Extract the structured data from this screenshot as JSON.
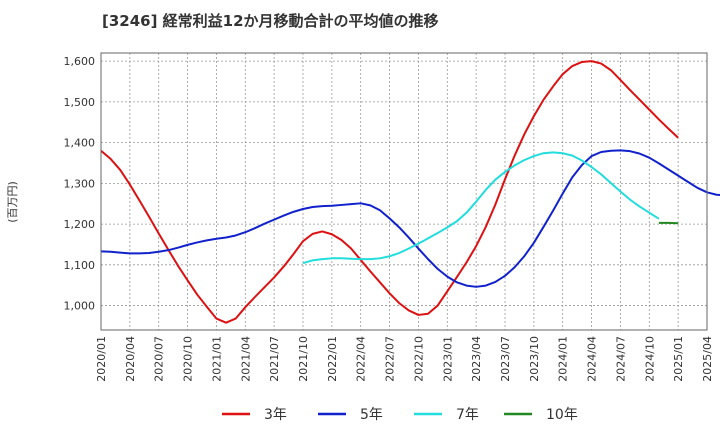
{
  "chart_data": {
    "type": "line",
    "title": "[3246]  経常利益12か月移動合計の平均値の推移",
    "ylabel": "(百万円)",
    "xlabel": "",
    "ylim": [
      940,
      1620
    ],
    "yticks": [
      1000,
      1100,
      1200,
      1300,
      1400,
      1500,
      1600
    ],
    "ytick_labels": [
      "1,000",
      "1,100",
      "1,200",
      "1,300",
      "1,400",
      "1,500",
      "1,600"
    ],
    "xticks": [
      "2020/01",
      "2020/04",
      "2020/07",
      "2020/10",
      "2021/01",
      "2021/04",
      "2021/07",
      "2021/10",
      "2022/01",
      "2022/04",
      "2022/07",
      "2022/10",
      "2023/01",
      "2023/04",
      "2023/07",
      "2023/10",
      "2024/01",
      "2024/04",
      "2024/07",
      "2024/10",
      "2025/01",
      "2025/04"
    ],
    "x_start": "2020/01",
    "grid": true,
    "legend_position": "bottom",
    "series": [
      {
        "name": "3年",
        "color": "#dd1111",
        "start": "2020/01",
        "values": [
          1380,
          1360,
          1333,
          1297,
          1258,
          1218,
          1177,
          1137,
          1098,
          1062,
          1027,
          997,
          968,
          958,
          968,
          996,
          1021,
          1045,
          1069,
          1096,
          1126,
          1158,
          1176,
          1182,
          1175,
          1161,
          1140,
          1112,
          1084,
          1057,
          1030,
          1006,
          988,
          977,
          980,
          1000,
          1035,
          1070,
          1106,
          1146,
          1193,
          1248,
          1310,
          1368,
          1420,
          1465,
          1505,
          1538,
          1568,
          1588,
          1598,
          1600,
          1594,
          1578,
          1554,
          1529,
          1505,
          1481,
          1457,
          1434,
          1412
        ]
      },
      {
        "name": "5年",
        "color": "#1122cc",
        "start": "2020/01",
        "values": [
          1133,
          1132,
          1130,
          1128,
          1128,
          1129,
          1132,
          1136,
          1142,
          1149,
          1155,
          1160,
          1164,
          1167,
          1172,
          1180,
          1190,
          1201,
          1211,
          1221,
          1230,
          1237,
          1242,
          1244,
          1245,
          1247,
          1249,
          1251,
          1246,
          1234,
          1214,
          1192,
          1167,
          1140,
          1114,
          1090,
          1071,
          1057,
          1049,
          1046,
          1049,
          1058,
          1073,
          1094,
          1121,
          1154,
          1193,
          1233,
          1275,
          1315,
          1345,
          1367,
          1377,
          1380,
          1381,
          1379,
          1373,
          1363,
          1349,
          1334,
          1319,
          1304,
          1289,
          1278,
          1272,
          1270
        ]
      },
      {
        "name": "7年",
        "color": "#22dddd",
        "start": "2021/10",
        "values": [
          1104,
          1111,
          1114,
          1116,
          1116,
          1115,
          1114,
          1114,
          1116,
          1121,
          1129,
          1140,
          1152,
          1165,
          1178,
          1192,
          1207,
          1228,
          1255,
          1284,
          1309,
          1328,
          1344,
          1357,
          1367,
          1374,
          1376,
          1374,
          1368,
          1356,
          1340,
          1322,
          1301,
          1280,
          1260,
          1243,
          1228,
          1213
        ]
      },
      {
        "name": "10年",
        "color": "#228822",
        "start": "2024/11",
        "values": [
          1203,
          1203,
          1202
        ]
      }
    ]
  }
}
